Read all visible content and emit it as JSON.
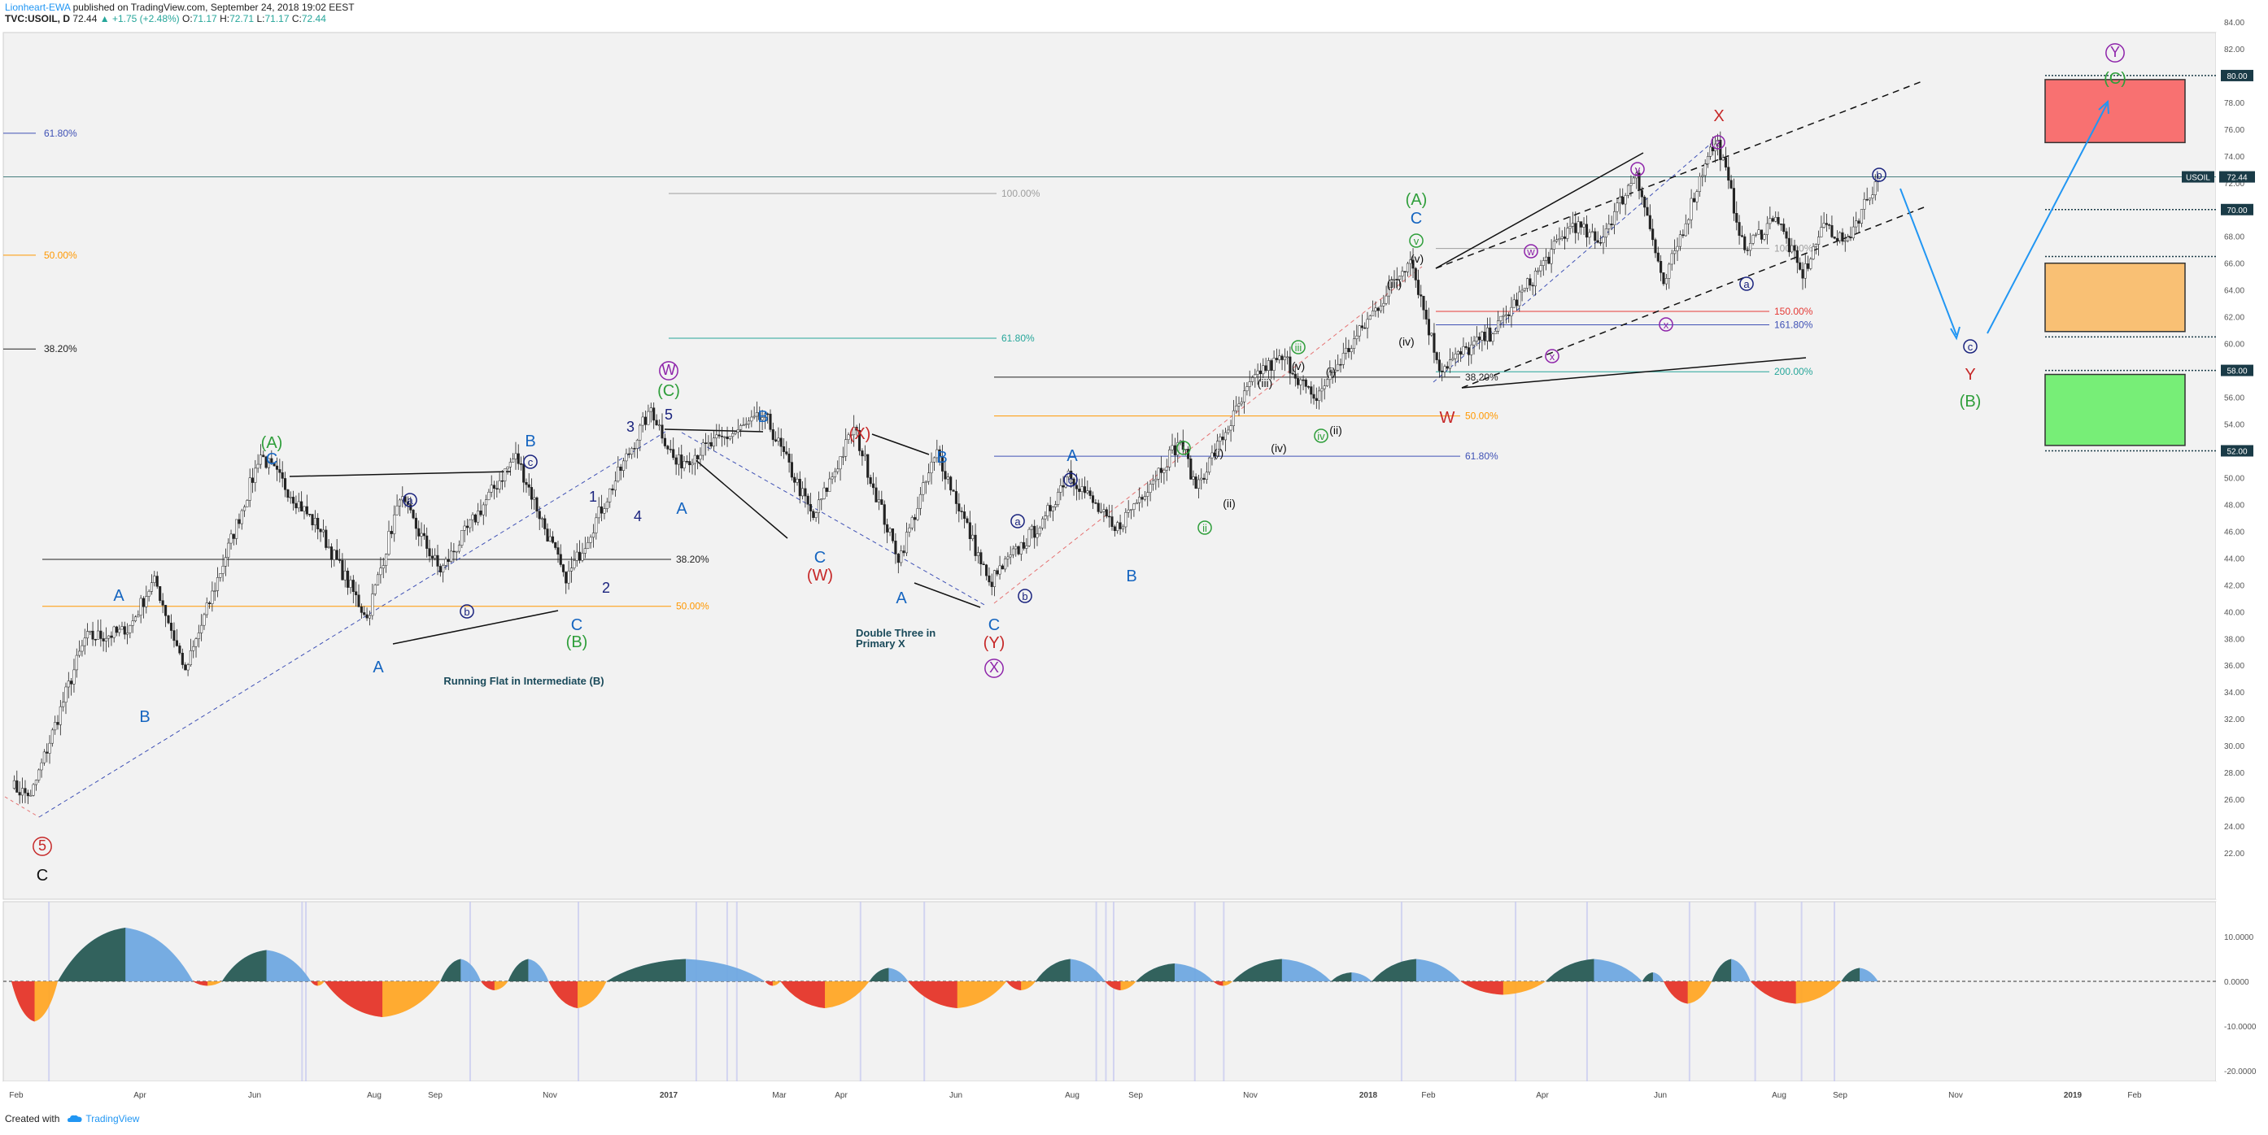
{
  "header": {
    "author": "Lionheart-EWA",
    "published": "published on TradingView.com, September 24, 2018 19:02 EEST",
    "symbol": "TVC:USOIL, D",
    "last": "72.44",
    "change": "+1.75 (+2.48%)",
    "o_label": "O:",
    "o": "71.17",
    "h_label": "H:",
    "h": "72.71",
    "l_label": "L:",
    "l": "71.17",
    "c_label": "C:",
    "c": "72.44"
  },
  "footer": {
    "created_with": "Created with",
    "brand": "TradingView"
  },
  "chart_data": {
    "type": "candlestick",
    "symbol": "USOIL",
    "interval": "D",
    "last_price": 72.44,
    "ylim": [
      21,
      84
    ],
    "y_ticks": [
      "84.00",
      "82.00",
      "80.00",
      "78.00",
      "76.00",
      "74.00",
      "72.00",
      "70.00",
      "68.00",
      "66.00",
      "64.00",
      "62.00",
      "60.00",
      "58.00",
      "56.00",
      "54.00",
      "52.00",
      "50.00",
      "48.00",
      "46.00",
      "44.00",
      "42.00",
      "40.00",
      "38.00",
      "36.00",
      "34.00",
      "32.00",
      "30.00",
      "28.00",
      "26.00",
      "24.00",
      "22.00"
    ],
    "x_ticks": [
      "Feb",
      "Apr",
      "Jun",
      "Aug",
      "Sep",
      "Nov",
      "2017",
      "Mar",
      "Apr",
      "Jun",
      "Aug",
      "Sep",
      "Nov",
      "2018",
      "Feb",
      "Apr",
      "Jun",
      "Aug",
      "Sep",
      "Nov",
      "2019",
      "Feb"
    ],
    "price_path": [
      [
        "2016-02-01",
        27
      ],
      [
        "2016-02-11",
        26.2
      ],
      [
        "2016-03-10",
        38
      ],
      [
        "2016-04-01",
        38.5
      ],
      [
        "2016-04-15",
        42.5
      ],
      [
        "2016-05-01",
        35.5
      ],
      [
        "2016-06-09",
        51.7
      ],
      [
        "2016-07-10",
        46
      ],
      [
        "2016-08-03",
        39.5
      ],
      [
        "2016-08-20",
        48.5
      ],
      [
        "2016-09-10",
        43
      ],
      [
        "2016-10-19",
        51.7
      ],
      [
        "2016-11-14",
        42.3
      ],
      [
        "2016-12-28",
        55.2
      ],
      [
        "2017-01-10",
        51
      ],
      [
        "2017-02-25",
        54.6
      ],
      [
        "2017-03-22",
        47
      ],
      [
        "2017-04-12",
        53.7
      ],
      [
        "2017-05-05",
        43.8
      ],
      [
        "2017-05-25",
        52
      ],
      [
        "2017-06-21",
        42.1
      ],
      [
        "2017-07-20",
        47
      ],
      [
        "2017-08-01",
        50.5
      ],
      [
        "2017-08-25",
        46
      ],
      [
        "2017-09-28",
        52.8
      ],
      [
        "2017-10-06",
        49.3
      ],
      [
        "2017-11-07",
        57.9
      ],
      [
        "2017-11-21",
        58.9
      ],
      [
        "2017-12-06",
        55.8
      ],
      [
        "2018-01-25",
        66.4
      ],
      [
        "2018-02-09",
        58.1
      ],
      [
        "2018-03-10",
        61
      ],
      [
        "2018-04-19",
        69
      ],
      [
        "2018-05-02",
        67.5
      ],
      [
        "2018-05-22",
        72.8
      ],
      [
        "2018-06-05",
        64.3
      ],
      [
        "2018-06-28",
        74.1
      ],
      [
        "2018-07-03",
        75.1
      ],
      [
        "2018-07-17",
        67
      ],
      [
        "2018-08-02",
        69.5
      ],
      [
        "2018-08-16",
        65
      ],
      [
        "2018-08-27",
        69
      ],
      [
        "2018-09-07",
        67.5
      ],
      [
        "2018-09-24",
        72.44
      ]
    ],
    "horizontal_levels": [
      "80.00",
      "70.00",
      "66.50",
      "60.50",
      "58.00",
      "52.00"
    ],
    "fib_levels": [
      {
        "label": "61.80%",
        "color": "#3f51b5",
        "group": "left"
      },
      {
        "label": "50.00%",
        "color": "#ff9800",
        "group": "left"
      },
      {
        "label": "38.20%",
        "color": "#222222",
        "group": "left"
      },
      {
        "label": "38.20%",
        "color": "#222222",
        "group": "2016"
      },
      {
        "label": "50.00%",
        "color": "#ff9800",
        "group": "2016"
      },
      {
        "label": "100.00%",
        "color": "#9e9e9e",
        "group": "2017a"
      },
      {
        "label": "61.80%",
        "color": "#26a69a",
        "group": "2017a"
      },
      {
        "label": "38.20%",
        "color": "#222222",
        "group": "2017b"
      },
      {
        "label": "50.00%",
        "color": "#ff9800",
        "group": "2017b"
      },
      {
        "label": "61.80%",
        "color": "#3f51b5",
        "group": "2017b"
      },
      {
        "label": "100.00%",
        "color": "#9e9e9e",
        "group": "2018"
      },
      {
        "label": "150.00%",
        "color": "#e53935",
        "group": "2018"
      },
      {
        "label": "161.80%",
        "color": "#3f51b5",
        "group": "2018"
      },
      {
        "label": "200.00%",
        "color": "#26a69a",
        "group": "2018"
      }
    ],
    "zones": [
      {
        "name": "red-zone",
        "color": "#f87171"
      },
      {
        "name": "orange-zone",
        "color": "#f9c074"
      },
      {
        "name": "green-zone",
        "color": "#77ee77"
      }
    ],
    "annotations": {
      "running_flat": "Running Flat in  Intermediate (B)",
      "double_three_1": "Double Three in",
      "double_three_2": "Primary X"
    },
    "wave_labels": {
      "five_red": "5",
      "c_black": "C",
      "A_green_1": "(A)",
      "C_blue_1": "C",
      "A_blue_1": "A",
      "B_blue_1": "B",
      "a_circ_1": "a",
      "b_circ_1": "b",
      "A_blue_2": "A",
      "B_blue_2": "B",
      "c_circ_1": "c",
      "C_blue_2": "C",
      "B_green_1": "(B)",
      "n1": "1",
      "n2": "2",
      "n3": "3",
      "n4": "4",
      "n5": "5",
      "A_blue_3": "A",
      "W_circ": "W",
      "C_green_1": "(C)",
      "B_blue_3": "B",
      "X_red_1": "(X)",
      "W_red_1": "(W)",
      "C_blue_3": "C",
      "B_blue_4": "B",
      "A_blue_4": "A",
      "C_blue_4": "C",
      "Y_red_1": "(Y)",
      "X_circ": "X",
      "a_circ_2": "a",
      "c_circ_2": "c",
      "A_blue_5": "A",
      "b_circ_2": "b",
      "B_blue_5": "B",
      "i_green": "i",
      "ii_green": "ii",
      "iii_green": "iii",
      "iv_green": "iv",
      "v_green": "v",
      "r_i_1": "(i)",
      "r_ii_1": "(ii)",
      "r_iii_1": "(iii)",
      "r_iv_1": "(iv)",
      "r_v_1": "(v)",
      "r_i_2": "(i)",
      "r_ii_2": "(ii)",
      "r_iii_2": "(iii)",
      "r_iv_2": "(iv)",
      "r_v_2": "(v)",
      "A_green_2": "(A)",
      "C_blue_5": "C",
      "W_red_2": "W",
      "w_circ": "w",
      "x_circ_1": "x",
      "y_circ": "y",
      "x_circ_2": "x",
      "z_circ": "z",
      "X_red_2": "X",
      "a_circ_3": "a",
      "b_circ_3": "b",
      "c_circ_3": "c",
      "Y_red_2": "Y",
      "B_green_2": "(B)",
      "Y_circ": "Y",
      "C_green_2": "(C)"
    },
    "oscillator": {
      "y_ticks": [
        "10.0000",
        "0.0000",
        "-10.0000",
        "-20.0000"
      ],
      "ylim": [
        -22,
        12
      ],
      "positive_colors": [
        "#2e5e55",
        "#6fa8e0"
      ],
      "negative_colors": [
        "#e53935",
        "#ffa726"
      ]
    }
  }
}
